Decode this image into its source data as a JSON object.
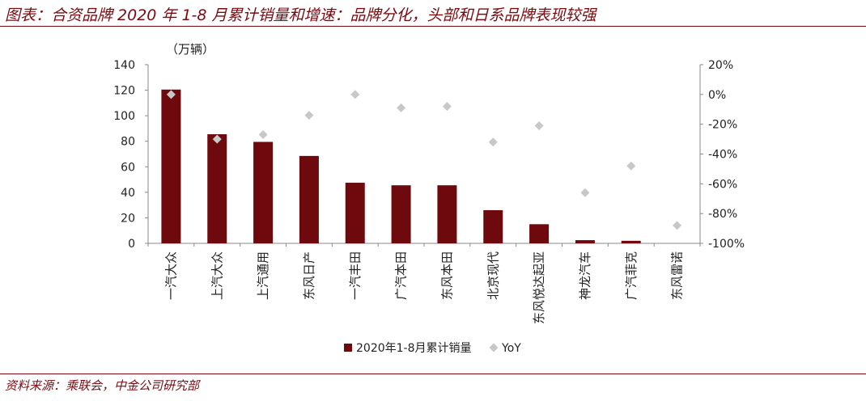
{
  "header": {
    "title": "图表：合资品牌 2020 年 1-8 月累计销量和增速：品牌分化，头部和日系品牌表现较强"
  },
  "footer": {
    "source": "资料来源：乘联会，中金公司研究部"
  },
  "colors": {
    "accent": "#7b0a0f",
    "bar": "#6e0a0e",
    "marker": "#c8c8c8",
    "axis": "#888888"
  },
  "chart_data": {
    "type": "bar",
    "unit_label": "（万辆）",
    "categories": [
      "一汽大众",
      "上汽大众",
      "上汽通用",
      "东风日产",
      "一汽丰田",
      "广汽本田",
      "东风本田",
      "北京现代",
      "东风悦达起亚",
      "神龙汽车",
      "广汽菲克",
      "东风雷诺"
    ],
    "series": [
      {
        "name": "2020年1-8月累计销量",
        "type": "bar",
        "axis": "left",
        "values": [
          120.5,
          85.5,
          79.5,
          68.5,
          47.5,
          45.5,
          45.5,
          26.0,
          15.0,
          2.5,
          2.0,
          0.0
        ]
      },
      {
        "name": "YoY",
        "type": "scatter",
        "axis": "right",
        "marker": "diamond",
        "values": [
          0.0,
          -30.0,
          -27.0,
          -14.0,
          0.0,
          -9.0,
          -8.0,
          -32.0,
          -21.0,
          -66.0,
          -48.0,
          -88.0
        ]
      }
    ],
    "ylim": [
      0,
      140
    ],
    "yticks": [
      "0",
      "20",
      "40",
      "60",
      "80",
      "100",
      "120",
      "140"
    ],
    "y2lim": [
      -100,
      20
    ],
    "y2ticks": [
      "-100%",
      "-80%",
      "-60%",
      "-40%",
      "-20%",
      "0%",
      "20%"
    ],
    "grid": false,
    "legend_position": "bottom"
  }
}
